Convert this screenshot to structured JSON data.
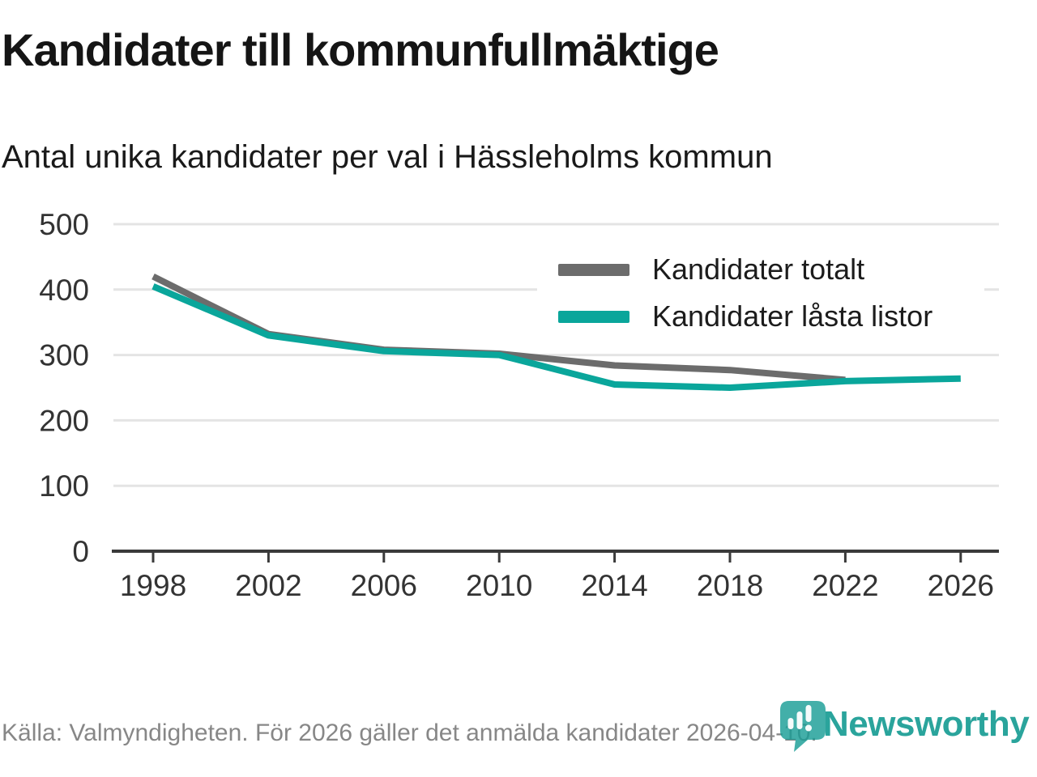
{
  "footer": {
    "source_text": "Källa: Valmyndigheten. För 2026 gäller det anmälda kandidater 2026-04-10."
  },
  "branding": {
    "wordmark": "Newsworthy",
    "icon": "newsworthy-pin-icon",
    "brand_color": "#2aa49c"
  },
  "chart_data": {
    "type": "line",
    "title": "Kandidater till kommunfullmäktige",
    "subtitle": "Antal unika kandidater per val i Hässleholms kommun",
    "x": [
      1998,
      2002,
      2006,
      2010,
      2014,
      2018,
      2022,
      2026
    ],
    "series": [
      {
        "name": "Kandidater totalt",
        "color": "#6c6c6c",
        "values": [
          420,
          332,
          308,
          302,
          284,
          277,
          262,
          null
        ]
      },
      {
        "name": "Kandidater låsta listor",
        "color": "#0aa69b",
        "values": [
          405,
          330,
          306,
          300,
          255,
          250,
          260,
          264
        ]
      }
    ],
    "ylim": [
      0,
      500
    ],
    "yticks": [
      0,
      100,
      200,
      300,
      400,
      500
    ],
    "grid": "horizontal",
    "legend_position": "top-right",
    "axis_color": "#3a3a3a",
    "grid_color": "#e4e4e4",
    "tick_label_color": "#333333"
  }
}
